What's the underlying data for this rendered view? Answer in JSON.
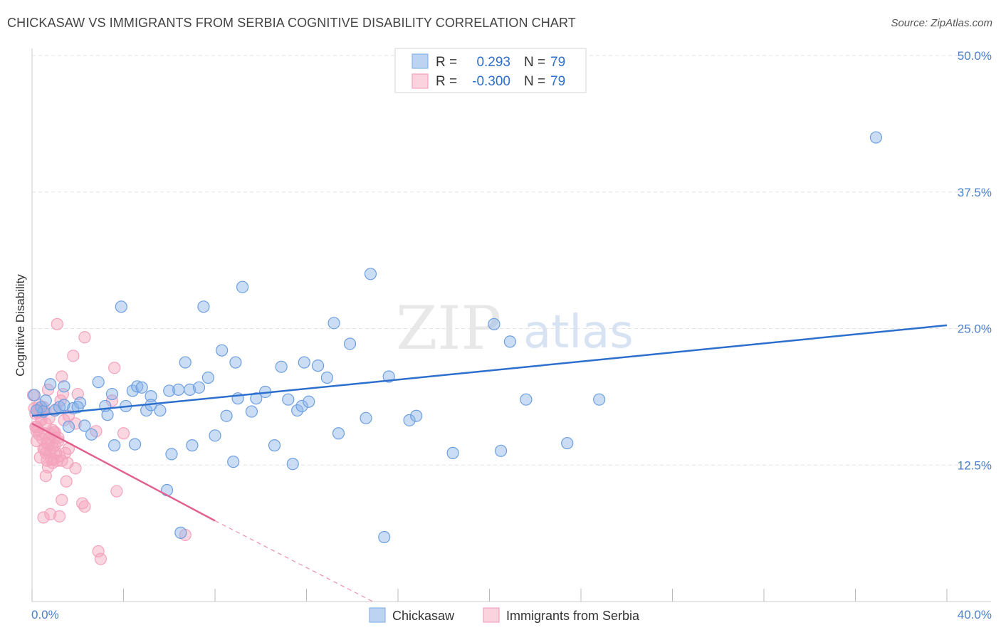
{
  "header": {
    "title": "CHICKASAW VS IMMIGRANTS FROM SERBIA COGNITIVE DISABILITY CORRELATION CHART",
    "source": "Source: ZipAtlas.com"
  },
  "watermark": {
    "zip": "ZIP",
    "atlas": "atlas"
  },
  "legend": {
    "r_label": "R =",
    "n_label": "N =",
    "rows": [
      {
        "r": "0.293",
        "n": "79"
      },
      {
        "r": "-0.300",
        "n": "79"
      }
    ]
  },
  "chart_data": {
    "type": "scatter",
    "title": "CHICKASAW VS IMMIGRANTS FROM SERBIA COGNITIVE DISABILITY CORRELATION CHART",
    "xlabel": "",
    "ylabel": "Cognitive Disability",
    "xlim": [
      0,
      40
    ],
    "ylim": [
      0,
      50
    ],
    "y_ticks": [
      {
        "value": 12.5,
        "label": "12.5%"
      },
      {
        "value": 25,
        "label": "25.0%"
      },
      {
        "value": 37.5,
        "label": "37.5%"
      },
      {
        "value": 50,
        "label": "50.0%"
      }
    ],
    "x_tick_labels": {
      "min": "0.0%",
      "max": "40.0%"
    },
    "x_minor_ticks": [
      0,
      4,
      8,
      12,
      16,
      20,
      24,
      28,
      32,
      36,
      40
    ],
    "grid": true,
    "colors": {
      "chickasaw": "#8ab4e8",
      "chickasaw_line": "#2d6fcc",
      "serbia": "#f4a3bd",
      "serbia_line": "#e2608e",
      "tick_text": "#4a7fcc"
    },
    "series": [
      {
        "name": "Chickasaw",
        "trend": {
          "x": [
            0,
            40
          ],
          "y": [
            17.0,
            25.3
          ]
        },
        "points": [
          [
            0.1,
            18.9
          ],
          [
            0.4,
            17.8
          ],
          [
            0.5,
            17.4
          ],
          [
            0.6,
            18.4
          ],
          [
            0.8,
            19.9
          ],
          [
            1.0,
            17.5
          ],
          [
            1.2,
            17.8
          ],
          [
            1.4,
            19.7
          ],
          [
            1.4,
            18.0
          ],
          [
            1.6,
            16.0
          ],
          [
            1.8,
            17.7
          ],
          [
            2.1,
            18.2
          ],
          [
            2.3,
            16.1
          ],
          [
            2.6,
            15.3
          ],
          [
            2.9,
            20.1
          ],
          [
            3.2,
            17.9
          ],
          [
            3.3,
            17.1
          ],
          [
            3.5,
            19.0
          ],
          [
            3.6,
            14.3
          ],
          [
            3.9,
            27.0
          ],
          [
            4.1,
            17.9
          ],
          [
            4.5,
            14.4
          ],
          [
            4.4,
            19.3
          ],
          [
            4.6,
            19.7
          ],
          [
            4.8,
            19.6
          ],
          [
            5.0,
            17.5
          ],
          [
            5.2,
            18.8
          ],
          [
            5.2,
            18.0
          ],
          [
            5.6,
            17.5
          ],
          [
            5.9,
            10.2
          ],
          [
            6.1,
            13.5
          ],
          [
            6.0,
            19.3
          ],
          [
            6.4,
            19.4
          ],
          [
            6.5,
            6.3
          ],
          [
            6.7,
            21.9
          ],
          [
            6.9,
            19.4
          ],
          [
            7.0,
            14.3
          ],
          [
            7.3,
            19.6
          ],
          [
            7.5,
            27.0
          ],
          [
            7.7,
            20.5
          ],
          [
            8.0,
            15.2
          ],
          [
            8.3,
            23.0
          ],
          [
            8.5,
            17.0
          ],
          [
            8.8,
            12.8
          ],
          [
            8.9,
            21.9
          ],
          [
            9.0,
            18.6
          ],
          [
            9.2,
            28.8
          ],
          [
            9.6,
            17.4
          ],
          [
            9.8,
            18.6
          ],
          [
            10.2,
            19.2
          ],
          [
            10.6,
            14.3
          ],
          [
            10.9,
            21.5
          ],
          [
            11.2,
            18.5
          ],
          [
            11.4,
            12.6
          ],
          [
            11.6,
            17.5
          ],
          [
            11.8,
            17.9
          ],
          [
            11.9,
            21.9
          ],
          [
            12.1,
            18.3
          ],
          [
            12.5,
            21.6
          ],
          [
            12.9,
            20.5
          ],
          [
            13.2,
            25.5
          ],
          [
            13.4,
            15.4
          ],
          [
            13.9,
            23.6
          ],
          [
            14.6,
            16.8
          ],
          [
            14.8,
            30.0
          ],
          [
            15.4,
            5.9
          ],
          [
            15.6,
            20.6
          ],
          [
            16.5,
            16.6
          ],
          [
            16.8,
            17.0
          ],
          [
            18.4,
            13.6
          ],
          [
            20.2,
            25.4
          ],
          [
            20.5,
            13.8
          ],
          [
            20.9,
            23.8
          ],
          [
            21.6,
            18.5
          ],
          [
            23.4,
            14.5
          ],
          [
            24.8,
            18.5
          ],
          [
            36.9,
            42.5
          ],
          [
            0.2,
            17.5
          ],
          [
            2.0,
            17.8
          ]
        ]
      },
      {
        "name": "Immigrants from Serbia",
        "trend": {
          "x": [
            0,
            8
          ],
          "y": [
            16.3,
            7.4
          ]
        },
        "trend_dashed": {
          "x": [
            8,
            14.9
          ],
          "y": [
            7.4,
            0
          ]
        },
        "points": [
          [
            0.05,
            18.9
          ],
          [
            0.1,
            17.7
          ],
          [
            0.15,
            17.2
          ],
          [
            0.2,
            16.0
          ],
          [
            0.2,
            15.6
          ],
          [
            0.25,
            17.3
          ],
          [
            0.3,
            17.6
          ],
          [
            0.3,
            15.3
          ],
          [
            0.35,
            13.2
          ],
          [
            0.4,
            16.6
          ],
          [
            0.45,
            14.9
          ],
          [
            0.5,
            17.8
          ],
          [
            0.5,
            14.0
          ],
          [
            0.55,
            15.4
          ],
          [
            0.6,
            16.3
          ],
          [
            0.6,
            13.6
          ],
          [
            0.65,
            12.9
          ],
          [
            0.7,
            14.4
          ],
          [
            0.75,
            15.0
          ],
          [
            0.8,
            13.8
          ],
          [
            0.85,
            13.0
          ],
          [
            0.9,
            14.1
          ],
          [
            0.9,
            12.7
          ],
          [
            0.95,
            15.5
          ],
          [
            1.0,
            14.3
          ],
          [
            1.05,
            13.6
          ],
          [
            1.1,
            12.9
          ],
          [
            1.15,
            15.0
          ],
          [
            1.2,
            13.3
          ],
          [
            1.25,
            18.4
          ],
          [
            1.3,
            12.9
          ],
          [
            1.35,
            19.0
          ],
          [
            1.4,
            16.6
          ],
          [
            1.45,
            13.6
          ],
          [
            1.5,
            11.0
          ],
          [
            1.55,
            12.7
          ],
          [
            1.6,
            14.0
          ],
          [
            0.6,
            11.5
          ],
          [
            0.7,
            19.4
          ],
          [
            1.0,
            15.5
          ],
          [
            1.1,
            25.4
          ],
          [
            1.3,
            20.6
          ],
          [
            1.8,
            22.5
          ],
          [
            1.9,
            16.3
          ],
          [
            2.2,
            9.0
          ],
          [
            2.3,
            8.7
          ],
          [
            2.3,
            24.2
          ],
          [
            2.8,
            15.6
          ],
          [
            2.9,
            4.6
          ],
          [
            3.0,
            3.9
          ],
          [
            3.5,
            18.4
          ],
          [
            3.6,
            21.4
          ],
          [
            3.7,
            10.1
          ],
          [
            4.0,
            15.4
          ],
          [
            6.7,
            6.1
          ],
          [
            0.5,
            7.7
          ],
          [
            0.8,
            8.0
          ],
          [
            1.2,
            7.8
          ],
          [
            1.3,
            9.3
          ],
          [
            1.9,
            12.2
          ],
          [
            0.3,
            18.0
          ],
          [
            0.4,
            16.6
          ],
          [
            0.45,
            17.4
          ],
          [
            0.9,
            15.7
          ],
          [
            1.0,
            15.0
          ],
          [
            0.7,
            12.3
          ],
          [
            0.2,
            14.7
          ],
          [
            0.15,
            16.0
          ],
          [
            1.05,
            17.6
          ],
          [
            0.25,
            15.8
          ],
          [
            0.35,
            17.5
          ],
          [
            0.55,
            13.9
          ],
          [
            0.65,
            14.5
          ],
          [
            0.75,
            16.8
          ],
          [
            0.85,
            15.3
          ],
          [
            0.95,
            13.0
          ],
          [
            1.15,
            14.7
          ],
          [
            1.6,
            17.0
          ],
          [
            2.0,
            19.0
          ]
        ]
      }
    ]
  }
}
